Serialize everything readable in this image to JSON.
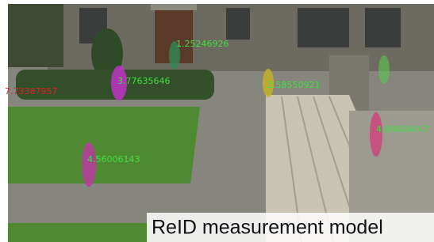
{
  "labels": [
    {
      "text": "1.25246926"
    },
    {
      "text": "3.77635646"
    },
    {
      "text": "7.73387957"
    },
    {
      "text": "2.58550921"
    },
    {
      "text": "4.89606047"
    },
    {
      "text": "4.56006143"
    }
  ],
  "caption": "ReID measurement model"
}
